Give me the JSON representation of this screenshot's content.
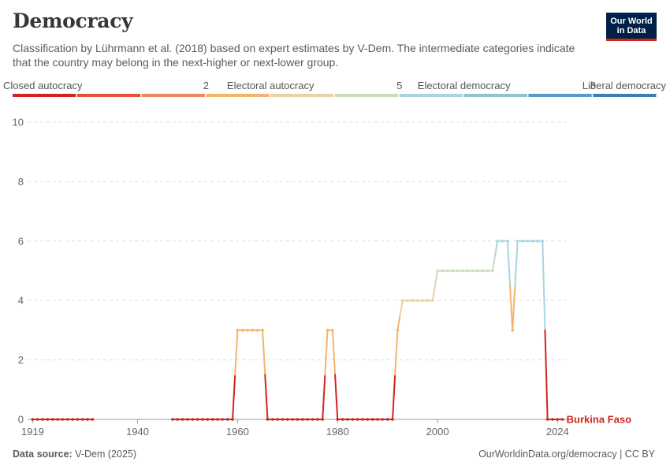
{
  "header": {
    "title": "Democracy",
    "subtitle": "Classification by Lührmann et al. (2018) based on expert estimates by V-Dem. The intermediate categories indicate that the country may belong in the next-higher or next-lower group.",
    "logo_line1": "Our World",
    "logo_line2": "in Data"
  },
  "footer": {
    "source_label": "Data source:",
    "source_value": "V-Dem (2025)",
    "url": "OurWorldinData.org/democracy | CC BY"
  },
  "chart_data": {
    "type": "line",
    "title": "Democracy",
    "xlabel": "",
    "ylabel": "",
    "ylim": [
      0,
      10
    ],
    "yticks": [
      0,
      2,
      4,
      6,
      8,
      10
    ],
    "xticks": [
      1919,
      1940,
      1960,
      1980,
      2000,
      2024
    ],
    "xlim": [
      1918,
      2026
    ],
    "legend": {
      "position": "top",
      "labels": [
        {
          "text": "Closed autocracy",
          "value": 0
        },
        {
          "text": "2",
          "value": 2
        },
        {
          "text": "Electoral autocracy",
          "value": 3
        },
        {
          "text": "5",
          "value": 5
        },
        {
          "text": "Electoral democracy",
          "value": 6
        },
        {
          "text": "8",
          "value": 8
        },
        {
          "text": "Liberal democracy",
          "value": 9
        }
      ],
      "colors": [
        "#ce261e",
        "#e0523c",
        "#ee8a57",
        "#f3b46e",
        "#ead1a6",
        "#c8dcc0",
        "#a6d6df",
        "#8fc1d7",
        "#5a9ac6",
        "#3d7fb5"
      ]
    },
    "series": [
      {
        "name": "Burkina Faso",
        "label_color": "#ce261e",
        "segments": [
          {
            "x": [
              1919,
              1920,
              1921,
              1922,
              1923,
              1924,
              1925,
              1926,
              1927,
              1928,
              1929,
              1930,
              1931
            ],
            "y": [
              0,
              0,
              0,
              0,
              0,
              0,
              0,
              0,
              0,
              0,
              0,
              0,
              0
            ]
          },
          {
            "x": [
              1947,
              1948,
              1949,
              1950,
              1951,
              1952,
              1953,
              1954,
              1955,
              1956,
              1957,
              1958,
              1959,
              1960,
              1961,
              1962,
              1963,
              1964,
              1965,
              1966,
              1967,
              1968,
              1969,
              1970,
              1971,
              1972,
              1973,
              1974,
              1975,
              1976,
              1977,
              1978,
              1979,
              1980,
              1981,
              1982,
              1983,
              1984,
              1985,
              1986,
              1987,
              1988,
              1989,
              1990,
              1991,
              1992,
              1993,
              1994,
              1995,
              1996,
              1997,
              1998,
              1999,
              2000,
              2001,
              2002,
              2003,
              2004,
              2005,
              2006,
              2007,
              2008,
              2009,
              2010,
              2011,
              2012,
              2013,
              2014,
              2015,
              2016,
              2017,
              2018,
              2019,
              2020,
              2021,
              2022,
              2023,
              2024,
              2025
            ],
            "y": [
              0,
              0,
              0,
              0,
              0,
              0,
              0,
              0,
              0,
              0,
              0,
              0,
              0,
              3,
              3,
              3,
              3,
              3,
              3,
              0,
              0,
              0,
              0,
              0,
              0,
              0,
              0,
              0,
              0,
              0,
              0,
              3,
              3,
              0,
              0,
              0,
              0,
              0,
              0,
              0,
              0,
              0,
              0,
              0,
              0,
              3,
              4,
              4,
              4,
              4,
              4,
              4,
              4,
              5,
              5,
              5,
              5,
              5,
              5,
              5,
              5,
              5,
              5,
              5,
              5,
              6,
              6,
              6,
              3,
              6,
              6,
              6,
              6,
              6,
              6,
              0,
              0,
              0,
              0
            ]
          }
        ]
      }
    ]
  }
}
